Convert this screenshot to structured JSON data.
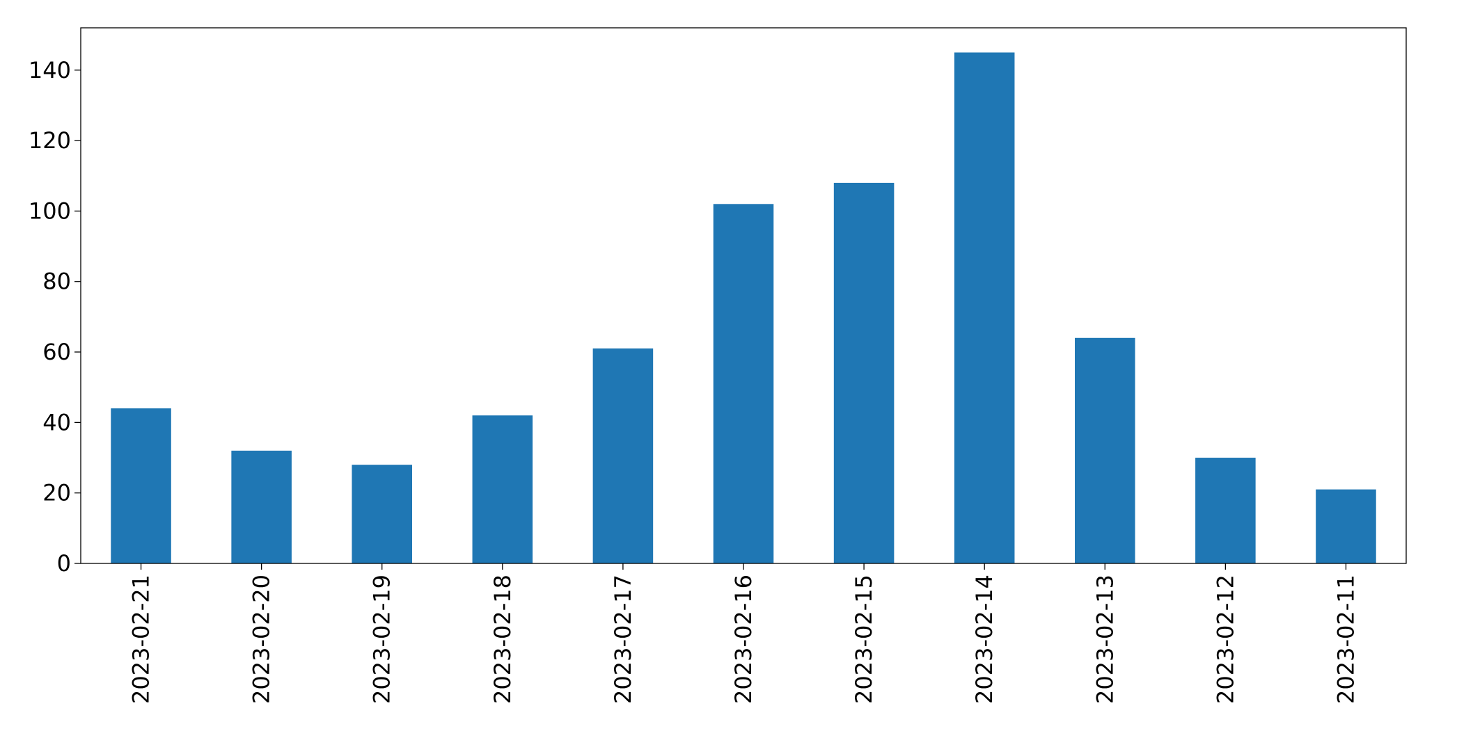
{
  "chart_data": {
    "type": "bar",
    "title": "",
    "xlabel": "",
    "ylabel": "",
    "categories": [
      "2023-02-21",
      "2023-02-20",
      "2023-02-19",
      "2023-02-18",
      "2023-02-17",
      "2023-02-16",
      "2023-02-15",
      "2023-02-14",
      "2023-02-13",
      "2023-02-12",
      "2023-02-11"
    ],
    "values": [
      44,
      32,
      28,
      42,
      61,
      102,
      108,
      145,
      64,
      30,
      21
    ],
    "ylim": [
      0,
      152
    ],
    "yticks": [
      0,
      20,
      40,
      60,
      80,
      100,
      120,
      140
    ],
    "grid": false,
    "legend": "none",
    "bar_color": "#1f77b4"
  }
}
